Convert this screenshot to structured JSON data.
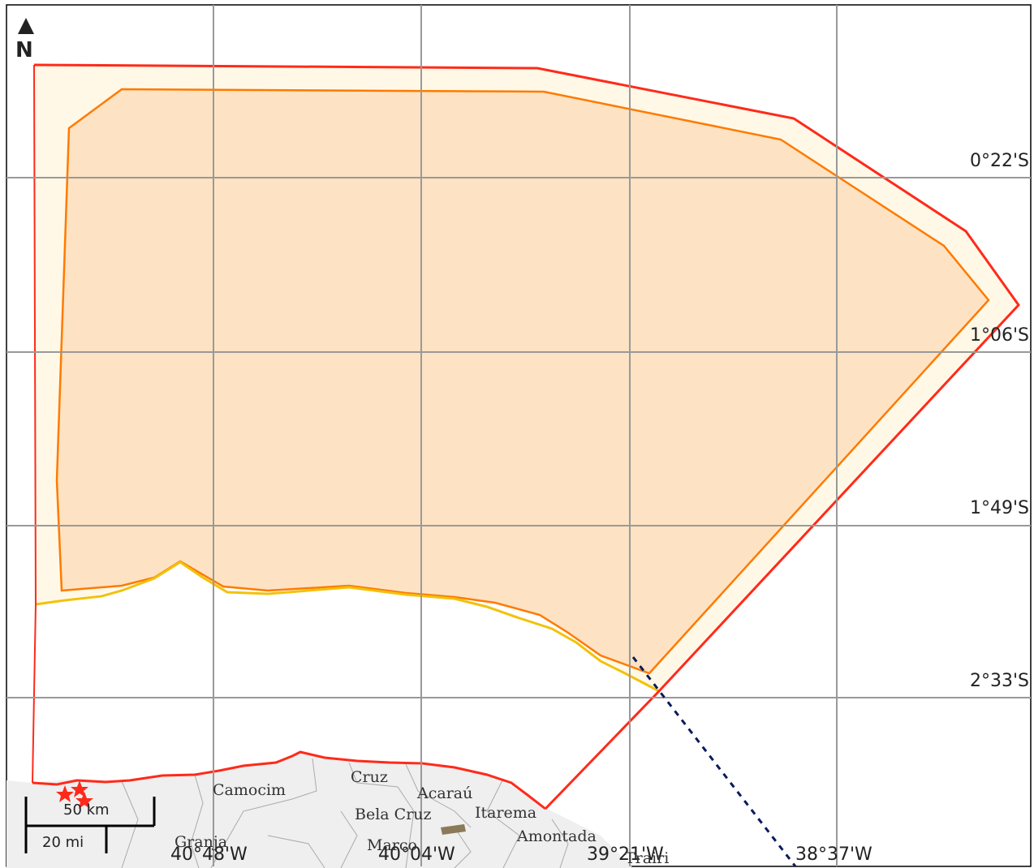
{
  "map": {
    "north_label": "N",
    "latitude_labels": [
      "0°22'S",
      "1°06'S",
      "1°49'S",
      "2°33'S"
    ],
    "longitude_labels": [
      "40°48'W",
      "40°04'W",
      "39°21'W",
      "38°37'W"
    ],
    "places": [
      "Camocim",
      "Cruz",
      "Acaraú",
      "Bela Cruz",
      "Itarema",
      "Granja",
      "Marco",
      "Amontada",
      "Trairi"
    ],
    "scale": {
      "metric": "50 km",
      "imperial": "20 mi"
    },
    "colors": {
      "outer_boundary": "#ff2a1a",
      "inner_boundary": "#ff7a00",
      "outer_fill": "#fff8e6",
      "inner_fill": "#fde3c3",
      "coastline_highlight": "#f2c20a",
      "land": "#efefef",
      "grid": "#999999",
      "dotted_line": "#0b1a5e"
    }
  }
}
